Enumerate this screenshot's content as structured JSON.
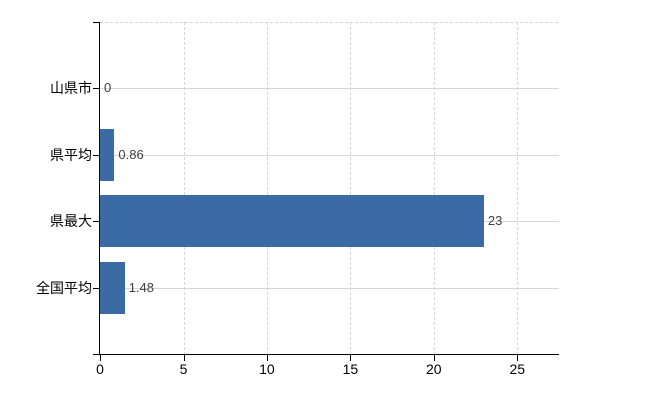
{
  "chart_data": {
    "type": "bar",
    "orientation": "horizontal",
    "categories": [
      "山県市",
      "県平均",
      "県最大",
      "全国平均"
    ],
    "values": [
      0,
      0.86,
      23,
      1.48
    ],
    "value_labels": [
      "0",
      "0.86",
      "23",
      "1.48"
    ],
    "x_ticks": [
      0,
      5,
      10,
      15,
      20,
      25
    ],
    "x_tick_labels": [
      "0",
      "5",
      "10",
      "15",
      "20",
      "25"
    ],
    "xlim": [
      0,
      27.5
    ],
    "grid": true,
    "legend": false,
    "title": "",
    "xlabel": "",
    "ylabel": "",
    "bar_color": "#3A6BA5",
    "gridline_color": "#D6D6D6",
    "axis_color": "#000000",
    "value_label_color": "#404040",
    "tick_label_color": "#000000",
    "category_label_color": "#000000",
    "background_color": "#FFFFFF"
  }
}
